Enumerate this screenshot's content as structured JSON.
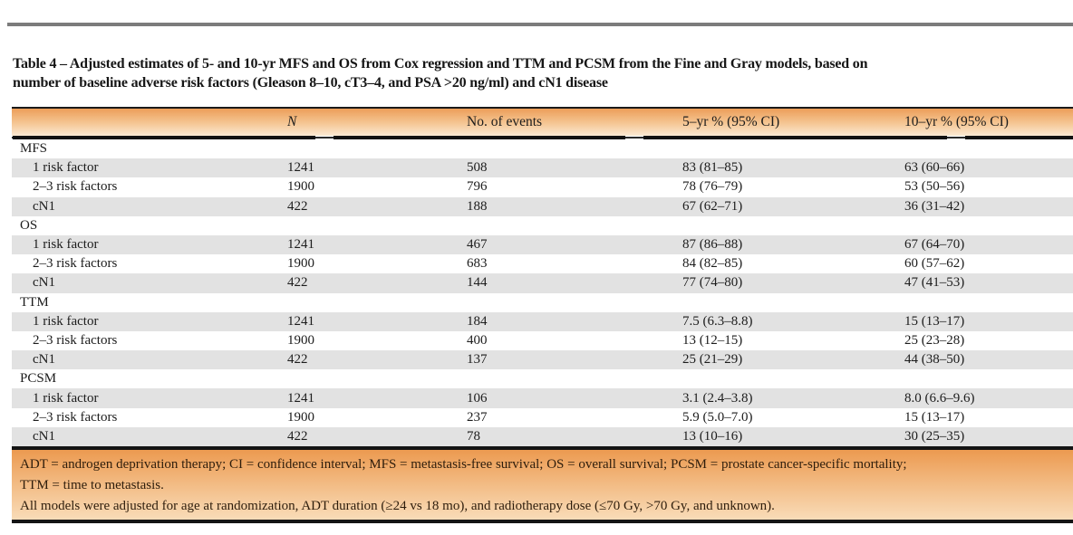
{
  "title": {
    "line1": "Table 4 – Adjusted estimates of 5- and 10-yr MFS and OS from Cox regression and TTM and PCSM from the Fine and Gray models, based on",
    "line2": "number of baseline adverse risk factors (Gleason 8–10, cT3–4, and PSA >20 ng/ml) and cN1 disease"
  },
  "table": {
    "headers": [
      "",
      "N",
      "No. of events",
      "5–yr % (95% CI)",
      "10–yr % (95% CI)"
    ],
    "groups": [
      {
        "label": "MFS",
        "rows": [
          {
            "label": "1 risk factor",
            "n": "1241",
            "events": "508",
            "yr5": "83 (81–85)",
            "yr10": "63 (60–66)"
          },
          {
            "label": "2–3 risk factors",
            "n": "1900",
            "events": "796",
            "yr5": "78 (76–79)",
            "yr10": "53 (50–56)"
          },
          {
            "label": "cN1",
            "n": "422",
            "events": "188",
            "yr5": "67 (62–71)",
            "yr10": "36 (31–42)"
          }
        ]
      },
      {
        "label": "OS",
        "rows": [
          {
            "label": "1 risk factor",
            "n": "1241",
            "events": "467",
            "yr5": "87 (86–88)",
            "yr10": "67 (64–70)"
          },
          {
            "label": "2–3 risk factors",
            "n": "1900",
            "events": "683",
            "yr5": "84 (82–85)",
            "yr10": "60 (57–62)"
          },
          {
            "label": "cN1",
            "n": "422",
            "events": "144",
            "yr5": "77 (74–80)",
            "yr10": "47 (41–53)"
          }
        ]
      },
      {
        "label": "TTM",
        "rows": [
          {
            "label": "1 risk factor",
            "n": "1241",
            "events": "184",
            "yr5": "7.5 (6.3–8.8)",
            "yr10": "15 (13–17)"
          },
          {
            "label": "2–3 risk factors",
            "n": "1900",
            "events": "400",
            "yr5": "13 (12–15)",
            "yr10": "25 (23–28)"
          },
          {
            "label": "cN1",
            "n": "422",
            "events": "137",
            "yr5": "25 (21–29)",
            "yr10": "44 (38–50)"
          }
        ]
      },
      {
        "label": "PCSM",
        "rows": [
          {
            "label": "1 risk factor",
            "n": "1241",
            "events": "106",
            "yr5": "3.1 (2.4–3.8)",
            "yr10": "8.0 (6.6–9.6)"
          },
          {
            "label": "2–3 risk factors",
            "n": "1900",
            "events": "237",
            "yr5": "5.9 (5.0–7.0)",
            "yr10": "15 (13–17)"
          },
          {
            "label": "cN1",
            "n": "422",
            "events": "78",
            "yr5": "13 (10–16)",
            "yr10": "30 (25–35)"
          }
        ]
      }
    ]
  },
  "footnotes": [
    "ADT = androgen deprivation therapy; CI = confidence interval; MFS = metastasis-free survival; OS = overall survival; PCSM = prostate cancer-specific mortality;",
    "TTM = time to metastasis.",
    "All models were adjusted for age at randomization, ADT duration (≥24 vs 18 mo), and radiotherapy dose (≤70 Gy, >70 Gy, and unknown)."
  ],
  "colors": {
    "header_gradient_top": "#ec9e59",
    "header_gradient_bottom": "#fbe9d3",
    "footer_gradient_top": "#ec9a50",
    "footer_gradient_bottom": "#f9dcb8",
    "alt_row": "#e2e2e2",
    "rule_black": "#1a1a1a",
    "rule_gray": "#7c7c7c"
  }
}
